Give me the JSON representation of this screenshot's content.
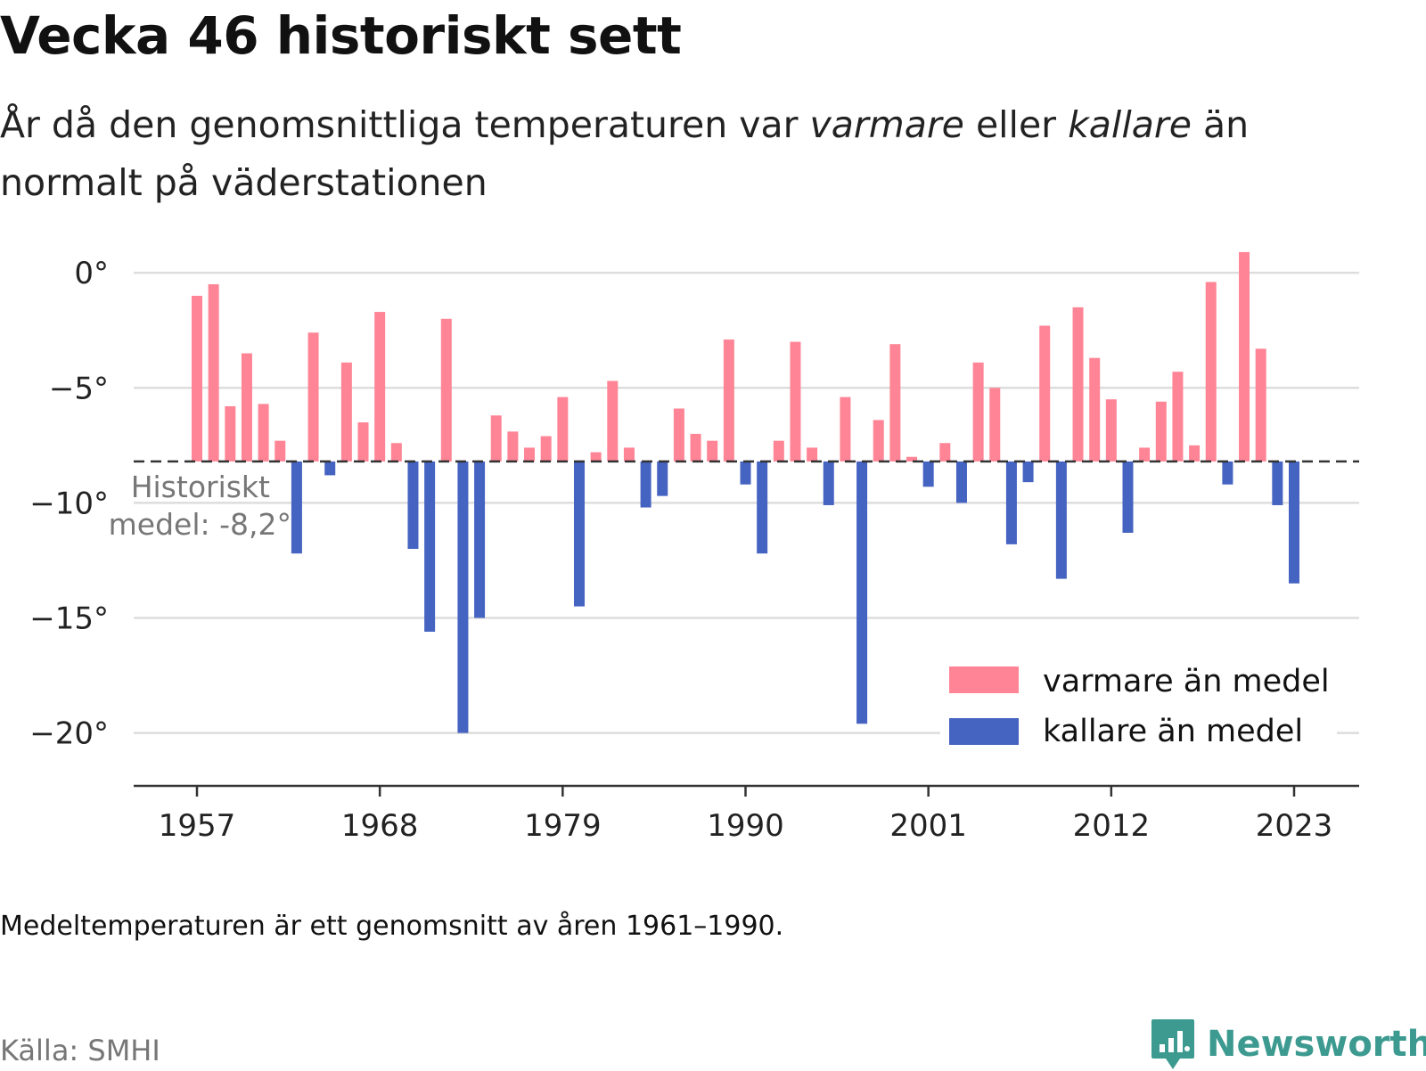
{
  "header": {
    "title": "Vecka 46 historiskt sett",
    "subtitle_pre": "År då den genomsnittliga temperaturen var ",
    "subtitle_warm": "varmare",
    "subtitle_mid": " eller ",
    "subtitle_cold": "kallare",
    "subtitle_post": " än normalt på väderstationen"
  },
  "footer": {
    "note": "Medeltemperaturen är ett genomsnitt av åren 1961–1990.",
    "source": "Källa: SMHI",
    "brand": "Newsworthy"
  },
  "colors": {
    "warm": "#ff8596",
    "cold": "#4563c1",
    "brand": "#3d9a90"
  },
  "chart_data": {
    "type": "bar",
    "mean": -8.2,
    "mean_label_line1": "Historiskt",
    "mean_label_line2": "medel: -8,2°",
    "ylim": [
      -22.3,
      1.4
    ],
    "yticks": [
      0,
      -5,
      -10,
      -15,
      -20
    ],
    "ytick_labels": [
      "0°",
      "−5°",
      "−10°",
      "−15°",
      "−20°"
    ],
    "xticks": [
      1957,
      1968,
      1979,
      1990,
      2001,
      2012,
      2023
    ],
    "grid": true,
    "legend_position": "bottom-right",
    "legend": [
      "varmare än medel",
      "kallare än medel"
    ],
    "x": [
      1957,
      1958,
      1959,
      1960,
      1961,
      1962,
      1963,
      1964,
      1965,
      1966,
      1967,
      1968,
      1969,
      1970,
      1971,
      1972,
      1973,
      1974,
      1975,
      1976,
      1977,
      1978,
      1979,
      1980,
      1981,
      1982,
      1983,
      1984,
      1985,
      1986,
      1987,
      1988,
      1989,
      1990,
      1991,
      1992,
      1993,
      1994,
      1995,
      1996,
      1997,
      1998,
      1999,
      2000,
      2001,
      2002,
      2003,
      2004,
      2005,
      2006,
      2007,
      2008,
      2009,
      2010,
      2011,
      2012,
      2013,
      2014,
      2015,
      2016,
      2017,
      2018,
      2019,
      2020,
      2021,
      2022,
      2023
    ],
    "values": [
      -1.0,
      -0.5,
      -5.8,
      -3.5,
      -5.7,
      -7.3,
      -12.2,
      -2.6,
      -8.8,
      -3.9,
      -6.5,
      -1.7,
      -7.4,
      -12.0,
      -15.6,
      -2.0,
      -20.0,
      -15.0,
      -6.2,
      -6.9,
      -7.6,
      -7.1,
      -5.4,
      -14.5,
      -7.8,
      -4.7,
      -7.6,
      -10.2,
      -9.7,
      -5.9,
      -7.0,
      -7.3,
      -2.9,
      -9.2,
      -12.2,
      -7.3,
      -3.0,
      -7.6,
      -10.1,
      -5.4,
      -19.6,
      -6.4,
      -3.1,
      -8.0,
      -9.3,
      -7.4,
      -10.0,
      -3.9,
      -5.0,
      -11.8,
      -9.1,
      -2.3,
      -13.3,
      -1.5,
      -3.7,
      -5.5,
      -11.3,
      -7.6,
      -5.6,
      -4.3,
      -7.5,
      -0.4,
      -9.2,
      0.9,
      -3.3,
      -10.1,
      -13.5
    ]
  }
}
